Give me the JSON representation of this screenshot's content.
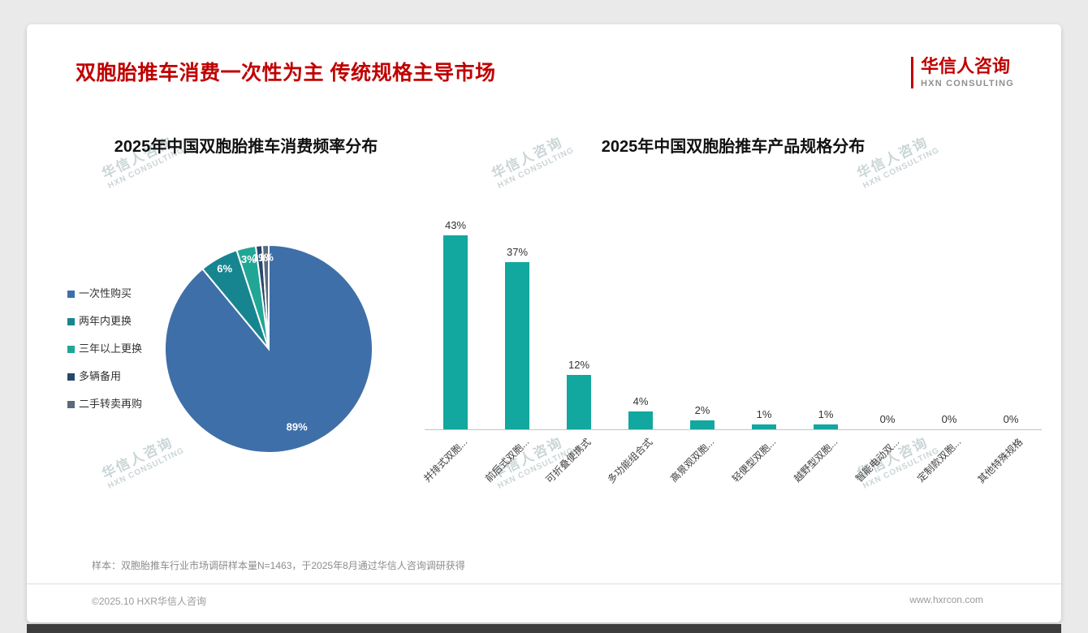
{
  "page": {
    "title": "双胞胎推车消费一次性为主 传统规格主导市场",
    "logo": {
      "cn": "华信人咨询",
      "en": "HXN CONSULTING"
    },
    "watermark": {
      "cn": "华信人咨询",
      "en": "HXN CONSULTING"
    },
    "footnote": "样本：双胞胎推车行业市场调研样本量N=1463，于2025年8月通过华信人咨询调研获得",
    "copyright": "©2025.10 HXR华信人咨询",
    "website": "www.hxrcon.com"
  },
  "colors": {
    "accent_red": "#c00000",
    "bar_teal": "#12a79f",
    "pie_blue": "#3e6fa8"
  },
  "chart_data": [
    {
      "type": "pie",
      "title": "2025年中国双胞胎推车消费频率分布",
      "categories": [
        "一次性购买",
        "两年内更换",
        "三年以上更换",
        "多辆备用",
        "二手转卖再购"
      ],
      "values": [
        89,
        6,
        3,
        1,
        1
      ],
      "unit": "%",
      "colors": [
        "#3e6fa8",
        "#17858f",
        "#21a695",
        "#26486e",
        "#5a6a7a"
      ],
      "legend_position": "left",
      "data_labels": true
    },
    {
      "type": "bar",
      "title": "2025年中国双胞胎推车产品规格分布",
      "categories": [
        "并排式双胞...",
        "前后式双胞...",
        "可折叠便携式",
        "多功能组合式",
        "高景观双胞...",
        "轻便型双胞...",
        "越野型双胞...",
        "智能电动双...",
        "定制款双胞...",
        "其他特殊规格"
      ],
      "values": [
        43,
        37,
        12,
        4,
        2,
        1,
        1,
        0,
        0,
        0
      ],
      "unit": "%",
      "bar_color": "#12a79f",
      "xlabel": "",
      "ylabel": "",
      "ylim": [
        0,
        45
      ],
      "grid": false,
      "data_labels": true,
      "legend_position": "none"
    }
  ]
}
